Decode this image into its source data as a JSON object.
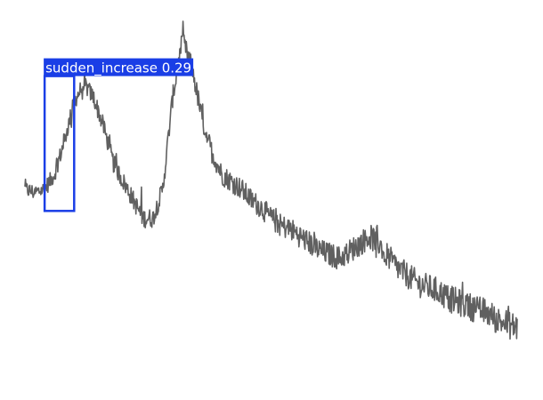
{
  "chart_data": {
    "type": "line",
    "title": "",
    "xlabel": "",
    "ylabel": "",
    "axes_visible": false,
    "grid": false,
    "line_color": "#606060",
    "series": [
      {
        "x": [
          0,
          2,
          4,
          6,
          8,
          10,
          12,
          14,
          16,
          18,
          20,
          22,
          24,
          26,
          28,
          30,
          32,
          34,
          36,
          38,
          40,
          42,
          44,
          46,
          48,
          50,
          52,
          54,
          56,
          58,
          60,
          62,
          64,
          66,
          68,
          70,
          72,
          74,
          76,
          78,
          80,
          82,
          84,
          86,
          88,
          90,
          92,
          94,
          96,
          98,
          100
        ],
        "y": [
          0.53,
          0.52,
          0.53,
          0.57,
          0.66,
          0.77,
          0.82,
          0.78,
          0.7,
          0.6,
          0.55,
          0.5,
          0.45,
          0.45,
          0.53,
          0.78,
          0.94,
          0.86,
          0.72,
          0.63,
          0.57,
          0.55,
          0.53,
          0.5,
          0.48,
          0.45,
          0.43,
          0.42,
          0.4,
          0.38,
          0.36,
          0.35,
          0.34,
          0.36,
          0.38,
          0.4,
          0.38,
          0.34,
          0.31,
          0.29,
          0.27,
          0.26,
          0.25,
          0.23,
          0.22,
          0.21,
          0.2,
          0.19,
          0.17,
          0.16,
          0.15
        ]
      }
    ],
    "detections": [
      {
        "label": "sudden_increase 0.29",
        "x_start": 4,
        "x_end": 10,
        "color": "#1a3ee6"
      }
    ]
  }
}
